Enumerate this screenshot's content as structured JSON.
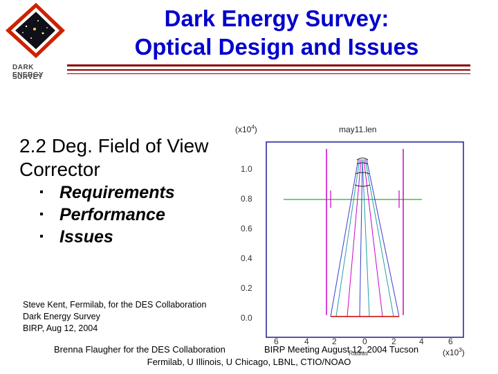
{
  "header": {
    "logo_text": [
      "DARK ENERGY",
      "SURVEY"
    ],
    "title_lines": [
      "Dark Energy Survey:",
      "Optical Design and Issues"
    ]
  },
  "main": {
    "heading_lines": [
      "2.2 Deg. Field of View",
      "Corrector"
    ],
    "bullets": [
      "Requirements",
      "Performance",
      "Issues"
    ],
    "credit_lines": [
      "Steve Kent, Fermilab, for the DES Collaboration",
      "Dark Energy Survey",
      "BIRP, Aug 12,  2004"
    ]
  },
  "plot": {
    "title": "may11.len",
    "y_multiplier": "(x10",
    "y_multiplier_exp": "4",
    "x_multiplier": "(x10",
    "x_multiplier_exp": "3",
    "y_ticks": [
      "1.0",
      "0.8",
      "0.6",
      "0.4",
      "0.2",
      "0.0"
    ],
    "x_ticks": [
      "6",
      "4",
      "2",
      "0",
      "2",
      "4",
      "6"
    ],
    "x_label": "Radius",
    "colors": {
      "frame": "#1a1a9a",
      "lens": "#cc00cc",
      "ray_a": "#3a3ad0",
      "ray_b": "#20a0a0",
      "plane": "#20b020",
      "base": "#cc0000"
    }
  },
  "footer": {
    "left": "Brenna Flaugher for the DES Collaboration",
    "right": "BIRP Meeting August 12, 2004 Tucson",
    "line2": "Fermilab, U Illinois, U Chicago, LBNL, CTIO/NOAO"
  }
}
